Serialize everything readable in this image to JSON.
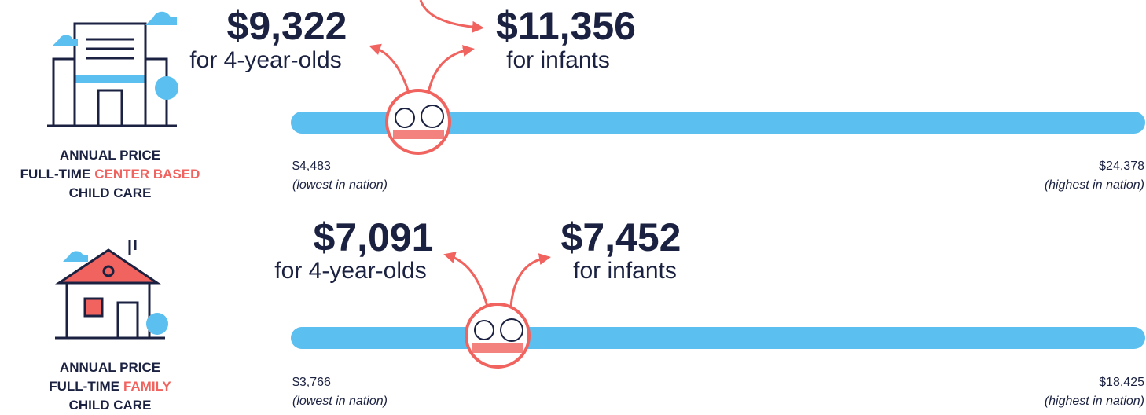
{
  "sections": [
    {
      "label": {
        "line1": "ANNUAL PRICE",
        "line2_prefix": "FULL-TIME",
        "line2_highlight": "CENTER BASED",
        "line3": "CHILD CARE"
      },
      "four_year_olds": {
        "price": "$9,322",
        "caption": "for 4-year-olds"
      },
      "infants": {
        "price": "$11,356",
        "caption": "for infants"
      },
      "min": {
        "price": "$4,483",
        "note": "(lowest in nation)"
      },
      "max": {
        "price": "$24,378",
        "note": "(highest in nation)"
      }
    },
    {
      "label": {
        "line1": "ANNUAL PRICE",
        "line2_prefix": "FULL-TIME",
        "line2_highlight": "FAMILY",
        "line3": "CHILD CARE"
      },
      "four_year_olds": {
        "price": "$7,091",
        "caption": "for 4-year-olds"
      },
      "infants": {
        "price": "$7,452",
        "caption": "for infants"
      },
      "min": {
        "price": "$3,766",
        "note": "(lowest in nation)"
      },
      "max": {
        "price": "$18,425",
        "note": "(highest in nation)"
      }
    }
  ]
}
